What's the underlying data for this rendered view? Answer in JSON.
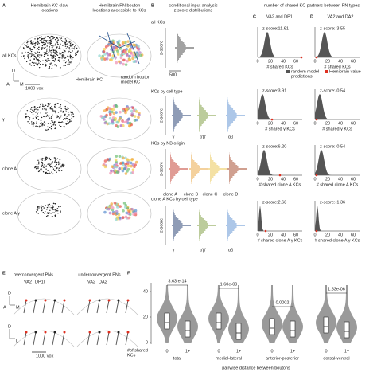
{
  "panel_a": {
    "label": "A",
    "title_kc": [
      "Hemibrain KC claw",
      "locations"
    ],
    "title_pn": [
      "Hemibrain PN bouton",
      "locations accessible to KCs"
    ],
    "rows": [
      "all KCs",
      "γ",
      "clone A",
      "clone A γ"
    ],
    "annotation_kc": "Hemibrain KC",
    "annotation_model": [
      "random bouton",
      "model KC"
    ],
    "axis": [
      "D",
      "A",
      "M"
    ],
    "scale": "1000 vox"
  },
  "panel_b": {
    "label": "B",
    "title": [
      "conditional input analysis",
      "z score distributions"
    ],
    "sections": [
      "all KCs",
      "KCs by cell type",
      "KCs by NB origin",
      "clone A KCs by cell type"
    ],
    "y_label": "z-score",
    "scale": "500",
    "cell_types": [
      "γ",
      "α'β'",
      "αβ"
    ],
    "clones": [
      "clone A",
      "clone B",
      "clone C",
      "clone D"
    ]
  },
  "panels_cd": {
    "title": "number of shared KC partners between PN types",
    "c": {
      "label": "C",
      "title": "VA2 and DP1l",
      "zscores": [
        "z-score:11.61",
        "z-score:3.91",
        "z-score:6.20",
        "z-score:2.68"
      ]
    },
    "d": {
      "label": "D",
      "title": "VA2 and DA2",
      "zscores": [
        "z-score:-3.55",
        "z-score:-0.54",
        "z-score:-0.54",
        "z-score:-1.36"
      ]
    },
    "x_labels": [
      "# shared KCs",
      "# shared γ KCs",
      "# shared clone A KCs",
      "# shared clone A γ KCs"
    ],
    "x_ticks": [
      "0",
      "20",
      "40",
      "60"
    ],
    "legend": [
      [
        "random model",
        "predictions"
      ],
      "Hemibrain value"
    ]
  },
  "panel_e": {
    "label": "E",
    "over": "overconvergent PNs",
    "under": "underconvergent PNs",
    "over_pns": [
      "VA2",
      "DP1l"
    ],
    "under_pns": [
      "VA2",
      "DA2"
    ],
    "axis_top": [
      "D",
      "A",
      "M"
    ],
    "axis_bottom": [
      "D",
      "L"
    ],
    "scale": "1000 vox"
  },
  "panel_f": {
    "label": "F",
    "yticks": [
      "0",
      "20",
      "40"
    ],
    "pvalues": [
      "3.63 e-14",
      "1.60e-09",
      "0.0002",
      "1.83e-06"
    ],
    "shared_label": [
      "#of shared",
      "KCs"
    ],
    "xticks": [
      "0",
      "1+"
    ],
    "groups": [
      "total",
      "medial-lateral",
      "anterior-posterior",
      "dorsal-ventral"
    ],
    "x_label": "pairwise distance between boutons"
  }
}
